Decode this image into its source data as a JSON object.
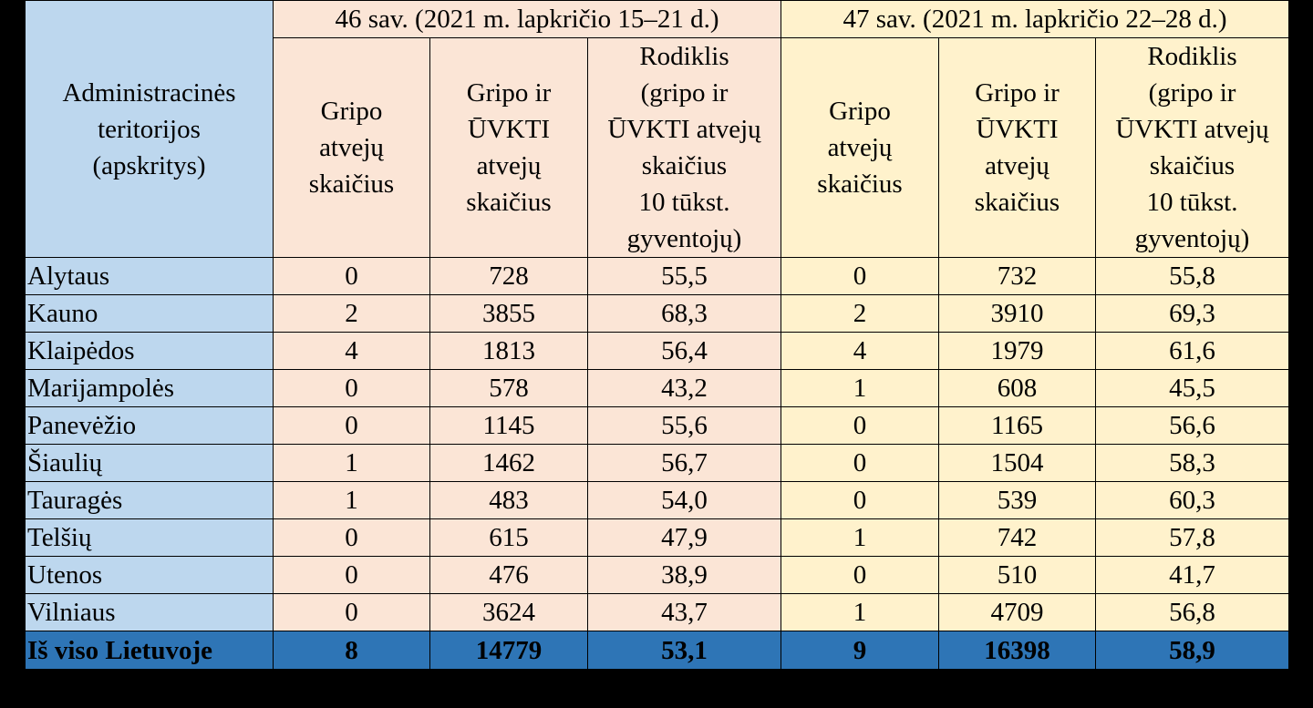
{
  "table": {
    "region_header": "Administracinės\nteritorijos\n(apskritys)",
    "weeks": [
      {
        "label": "46 sav. (2021 m. lapkričio 15–21 d.)",
        "columns": [
          "Gripo\natvejų\nskaičius",
          "Gripo ir\nŪVKTI\natvejų\nskaičius",
          "Rodiklis\n(gripo ir\nŪVKTI atvejų\nskaičius\n10 tūkst.\ngyventojų)"
        ]
      },
      {
        "label": "47 sav. (2021 m. lapkričio 22–28 d.)",
        "columns": [
          "Gripo\natvejų\nskaičius",
          "Gripo ir\nŪVKTI\natvejų\nskaičius",
          "Rodiklis\n(gripo ir\nŪVKTI atvejų\nskaičius\n10 tūkst.\ngyventojų)"
        ]
      }
    ],
    "rows": [
      [
        "Alytaus",
        "0",
        "728",
        "55,5",
        "0",
        "732",
        "55,8"
      ],
      [
        "Kauno",
        "2",
        "3855",
        "68,3",
        "2",
        "3910",
        "69,3"
      ],
      [
        "Klaipėdos",
        "4",
        "1813",
        "56,4",
        "4",
        "1979",
        "61,6"
      ],
      [
        "Marijampolės",
        "0",
        "578",
        "43,2",
        "1",
        "608",
        "45,5"
      ],
      [
        "Panevėžio",
        "0",
        "1145",
        "55,6",
        "0",
        "1165",
        "56,6"
      ],
      [
        "Šiaulių",
        "1",
        "1462",
        "56,7",
        "0",
        "1504",
        "58,3"
      ],
      [
        "Tauragės",
        "1",
        "483",
        "54,0",
        "0",
        "539",
        "60,3"
      ],
      [
        "Telšių",
        "0",
        "615",
        "47,9",
        "1",
        "742",
        "57,8"
      ],
      [
        "Utenos",
        "0",
        "476",
        "38,9",
        "0",
        "510",
        "41,7"
      ],
      [
        "Vilniaus",
        "0",
        "3624",
        "43,7",
        "1",
        "4709",
        "56,8"
      ]
    ],
    "total": [
      "Iš viso Lietuvoje",
      "8",
      "14779",
      "53,1",
      "9",
      "16398",
      "58,9"
    ]
  },
  "colors": {
    "region_column": "#bdd7ee",
    "week46": "#fbe5d6",
    "week47": "#fff2cc",
    "total_row": "#2e75b6",
    "background": "#000000"
  }
}
